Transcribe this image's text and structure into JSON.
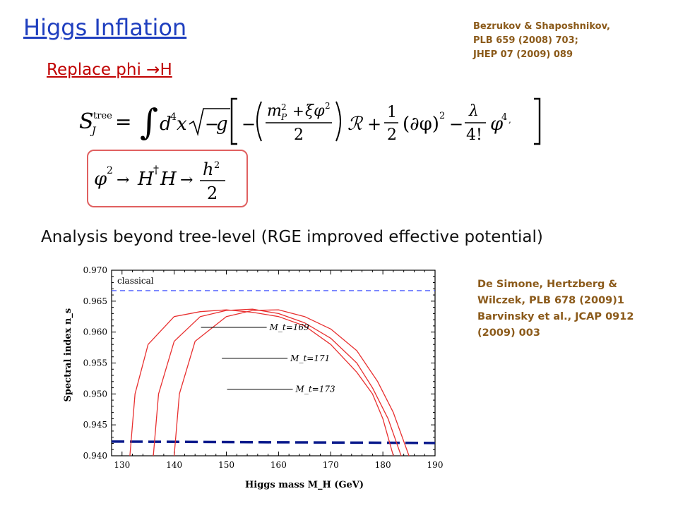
{
  "header": {
    "title": "Higgs Inflation",
    "subtitle": "Replace phi →H",
    "reference_top": [
      "Bezrukov & Shaposhnikov,",
      "PLB 659 (2008) 703;",
      "JHEP 07 (2009) 089"
    ],
    "analysis_text": "Analysis beyond tree-level (RGE improved effective potential)",
    "reference_side": [
      "De Simone, Hertzberg &",
      "Wilczek, PLB 678 (2009)1",
      "Barvinsky et al., JCAP 0912",
      "(2009) 003"
    ]
  },
  "equations": {
    "action_lhs": "S",
    "action_sub": "J",
    "action_sup": "tree",
    "replacement": "φ² → H†H → h²/2"
  },
  "colors": {
    "title": "#1f3fbf",
    "subtitle": "#c00000",
    "refs": "#8b5a1a",
    "curves": "#e83030",
    "classical": "#4a5cff",
    "dashed_bottom": "#0a1a8c"
  },
  "chart_data": {
    "type": "line",
    "xlabel": "Higgs mass  M_H (GeV)",
    "ylabel": "Spectral index  n_s",
    "xlim": [
      128,
      190
    ],
    "ylim": [
      0.94,
      0.97
    ],
    "x_ticks": [
      130,
      140,
      150,
      160,
      170,
      180,
      190
    ],
    "y_ticks": [
      0.94,
      0.945,
      0.95,
      0.955,
      0.96,
      0.965,
      0.97
    ],
    "x_tick_labels": [
      "130",
      "140",
      "150",
      "160",
      "170",
      "180",
      "190"
    ],
    "y_tick_labels": [
      "0.940",
      "0.945",
      "0.950",
      "0.955",
      "0.960",
      "0.965",
      "0.970"
    ],
    "reference_lines": [
      {
        "label": "classical",
        "y": 0.9667,
        "style": "dashed"
      },
      {
        "label": "",
        "y": 0.9423,
        "style": "thick-dashed"
      }
    ],
    "series": [
      {
        "name": "M_t=169",
        "x": [
          131.5,
          132.5,
          135,
          140,
          145,
          150,
          155,
          160,
          165,
          170,
          175,
          178,
          180,
          182
        ],
        "y": [
          0.94,
          0.95,
          0.958,
          0.9625,
          0.9633,
          0.9636,
          0.9632,
          0.9625,
          0.961,
          0.958,
          0.9535,
          0.95,
          0.946,
          0.94
        ]
      },
      {
        "name": "M_t=171",
        "x": [
          136,
          137,
          140,
          145,
          150,
          155,
          160,
          165,
          170,
          175,
          178,
          181,
          183.5
        ],
        "y": [
          0.94,
          0.95,
          0.9585,
          0.9625,
          0.9635,
          0.9637,
          0.963,
          0.9615,
          0.959,
          0.955,
          0.951,
          0.946,
          0.94
        ]
      },
      {
        "name": "M_t=173",
        "x": [
          140,
          141,
          144,
          150,
          155,
          160,
          165,
          170,
          175,
          179,
          182,
          185
        ],
        "y": [
          0.94,
          0.95,
          0.9585,
          0.9625,
          0.9635,
          0.9636,
          0.9625,
          0.9605,
          0.957,
          0.952,
          0.947,
          0.94
        ]
      }
    ],
    "annotations": [
      {
        "text": "M_t=169",
        "x": 158,
        "y": 0.9603
      },
      {
        "text": "M_t=171",
        "x": 162,
        "y": 0.9553
      },
      {
        "text": "M_t=173",
        "x": 163,
        "y": 0.9503
      }
    ]
  }
}
